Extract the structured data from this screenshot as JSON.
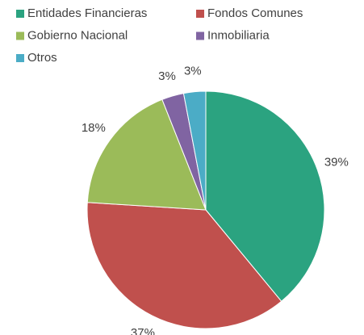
{
  "chart_data": {
    "type": "pie",
    "categories": [
      "Entidades Financieras",
      "Fondos Comunes",
      "Gobierno Nacional",
      "Inmobiliaria",
      "Otros"
    ],
    "values": [
      39,
      37,
      18,
      3,
      3
    ],
    "value_labels": [
      "39%",
      "37%",
      "18%",
      "3%",
      "3%"
    ],
    "colors": [
      "#2ba380",
      "#c0504d",
      "#9bbb59",
      "#8064a2",
      "#4bacc6"
    ],
    "legend": "top"
  }
}
